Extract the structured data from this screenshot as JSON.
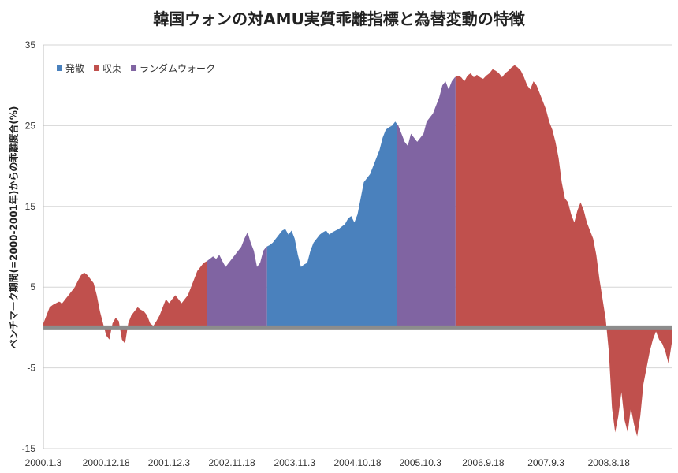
{
  "chart_data": {
    "type": "area",
    "title": "韓国ウォンの対AMU実質乖離指標と為替変動の特徴",
    "ylabel": "ベンチマーク期間(=2000-2001年)からの乖離度合(%)",
    "xlabel": "",
    "ylim": [
      -15,
      35
    ],
    "yticks": [
      -15,
      -5,
      5,
      15,
      25,
      35
    ],
    "xticks": [
      "2000.1.3",
      "2000.12.18",
      "2001.12.3",
      "2002.11.18",
      "2003.11.3",
      "2004.10.18",
      "2005.10.3",
      "2006.9.18",
      "2007.9.3",
      "2008.8.18"
    ],
    "grid": true,
    "legend_position": "top-left",
    "legend": [
      {
        "name": "発散",
        "color": "#4a81bd"
      },
      {
        "name": "収束",
        "color": "#c0504d"
      },
      {
        "name": "ランダムウォーク",
        "color": "#8064a2"
      }
    ],
    "zero_line_color": "#8c8c8c",
    "x_index_range": [
      0,
      100
    ],
    "segments": [
      {
        "category": "収束",
        "from": 0,
        "to": 26
      },
      {
        "category": "ランダムウォーク",
        "from": 26,
        "to": 35.6
      },
      {
        "category": "発散",
        "from": 35.6,
        "to": 56.3
      },
      {
        "category": "ランダムウォーク",
        "from": 56.3,
        "to": 65.6
      },
      {
        "category": "収束",
        "from": 65.6,
        "to": 100
      }
    ],
    "points": [
      [
        0.0,
        0.5
      ],
      [
        0.5,
        1.5
      ],
      [
        1.0,
        2.5
      ],
      [
        1.5,
        2.8
      ],
      [
        2.0,
        3.0
      ],
      [
        2.5,
        3.2
      ],
      [
        3.0,
        3.0
      ],
      [
        3.5,
        3.5
      ],
      [
        4.0,
        4.0
      ],
      [
        4.5,
        4.5
      ],
      [
        5.0,
        5.0
      ],
      [
        5.5,
        5.8
      ],
      [
        6.0,
        6.5
      ],
      [
        6.5,
        6.8
      ],
      [
        7.0,
        6.5
      ],
      [
        7.5,
        6.0
      ],
      [
        8.0,
        5.5
      ],
      [
        8.5,
        4.0
      ],
      [
        9.0,
        2.0
      ],
      [
        9.5,
        0.5
      ],
      [
        10.0,
        -1.0
      ],
      [
        10.5,
        -1.5
      ],
      [
        11.0,
        0.5
      ],
      [
        11.5,
        1.2
      ],
      [
        12.0,
        0.8
      ],
      [
        12.5,
        -1.5
      ],
      [
        13.0,
        -2.0
      ],
      [
        13.5,
        0.5
      ],
      [
        14.0,
        1.5
      ],
      [
        14.5,
        2.0
      ],
      [
        15.0,
        2.5
      ],
      [
        15.5,
        2.2
      ],
      [
        16.0,
        2.0
      ],
      [
        16.5,
        1.5
      ],
      [
        17.0,
        0.5
      ],
      [
        17.5,
        0.2
      ],
      [
        18.0,
        0.8
      ],
      [
        18.5,
        1.5
      ],
      [
        19.0,
        2.5
      ],
      [
        19.5,
        3.5
      ],
      [
        20.0,
        3.0
      ],
      [
        20.5,
        3.5
      ],
      [
        21.0,
        4.0
      ],
      [
        21.5,
        3.5
      ],
      [
        22.0,
        3.0
      ],
      [
        22.5,
        3.5
      ],
      [
        23.0,
        4.0
      ],
      [
        23.5,
        5.0
      ],
      [
        24.0,
        6.0
      ],
      [
        24.5,
        7.0
      ],
      [
        25.0,
        7.5
      ],
      [
        25.5,
        8.0
      ],
      [
        26.0,
        8.2
      ],
      [
        26.5,
        8.5
      ],
      [
        27.0,
        8.8
      ],
      [
        27.5,
        8.5
      ],
      [
        28.0,
        9.0
      ],
      [
        28.5,
        8.2
      ],
      [
        29.0,
        7.5
      ],
      [
        29.5,
        8.0
      ],
      [
        30.0,
        8.5
      ],
      [
        30.5,
        9.0
      ],
      [
        31.0,
        9.5
      ],
      [
        31.5,
        10.0
      ],
      [
        32.0,
        11.0
      ],
      [
        32.5,
        11.8
      ],
      [
        33.0,
        10.5
      ],
      [
        33.5,
        9.5
      ],
      [
        34.0,
        7.5
      ],
      [
        34.5,
        8.0
      ],
      [
        35.0,
        9.5
      ],
      [
        35.5,
        10.0
      ],
      [
        36.0,
        10.2
      ],
      [
        36.5,
        10.5
      ],
      [
        37.0,
        11.0
      ],
      [
        37.5,
        11.5
      ],
      [
        38.0,
        12.0
      ],
      [
        38.5,
        12.2
      ],
      [
        39.0,
        11.5
      ],
      [
        39.5,
        12.0
      ],
      [
        40.0,
        11.0
      ],
      [
        40.5,
        9.0
      ],
      [
        41.0,
        7.5
      ],
      [
        41.5,
        7.8
      ],
      [
        42.0,
        8.0
      ],
      [
        42.5,
        9.5
      ],
      [
        43.0,
        10.5
      ],
      [
        43.5,
        11.0
      ],
      [
        44.0,
        11.5
      ],
      [
        44.5,
        11.8
      ],
      [
        45.0,
        12.0
      ],
      [
        45.5,
        11.5
      ],
      [
        46.0,
        11.8
      ],
      [
        46.5,
        12.0
      ],
      [
        47.0,
        12.2
      ],
      [
        47.5,
        12.5
      ],
      [
        48.0,
        12.8
      ],
      [
        48.5,
        13.5
      ],
      [
        49.0,
        13.8
      ],
      [
        49.5,
        13.0
      ],
      [
        50.0,
        14.0
      ],
      [
        50.5,
        16.0
      ],
      [
        51.0,
        18.0
      ],
      [
        51.5,
        18.5
      ],
      [
        52.0,
        19.0
      ],
      [
        52.5,
        20.0
      ],
      [
        53.0,
        21.0
      ],
      [
        53.5,
        22.0
      ],
      [
        54.0,
        23.5
      ],
      [
        54.5,
        24.5
      ],
      [
        55.0,
        24.8
      ],
      [
        55.5,
        25.0
      ],
      [
        56.0,
        25.5
      ],
      [
        56.5,
        25.0
      ],
      [
        57.0,
        24.0
      ],
      [
        57.5,
        23.0
      ],
      [
        58.0,
        22.5
      ],
      [
        58.5,
        24.0
      ],
      [
        59.0,
        23.5
      ],
      [
        59.5,
        23.0
      ],
      [
        60.0,
        23.5
      ],
      [
        60.5,
        24.0
      ],
      [
        61.0,
        25.5
      ],
      [
        61.5,
        26.0
      ],
      [
        62.0,
        26.5
      ],
      [
        62.5,
        27.5
      ],
      [
        63.0,
        28.5
      ],
      [
        63.5,
        30.0
      ],
      [
        64.0,
        30.5
      ],
      [
        64.5,
        29.5
      ],
      [
        65.0,
        30.5
      ],
      [
        65.5,
        31.0
      ],
      [
        66.0,
        31.2
      ],
      [
        66.5,
        31.0
      ],
      [
        67.0,
        30.5
      ],
      [
        67.5,
        31.2
      ],
      [
        68.0,
        31.5
      ],
      [
        68.5,
        31.0
      ],
      [
        69.0,
        31.3
      ],
      [
        69.5,
        31.0
      ],
      [
        70.0,
        30.8
      ],
      [
        70.5,
        31.2
      ],
      [
        71.0,
        31.5
      ],
      [
        71.5,
        32.0
      ],
      [
        72.0,
        31.8
      ],
      [
        72.5,
        31.5
      ],
      [
        73.0,
        31.0
      ],
      [
        73.5,
        31.5
      ],
      [
        74.0,
        31.8
      ],
      [
        74.5,
        32.2
      ],
      [
        75.0,
        32.5
      ],
      [
        75.5,
        32.2
      ],
      [
        76.0,
        31.8
      ],
      [
        76.5,
        31.0
      ],
      [
        77.0,
        30.0
      ],
      [
        77.5,
        29.5
      ],
      [
        78.0,
        30.5
      ],
      [
        78.5,
        30.0
      ],
      [
        79.0,
        29.0
      ],
      [
        79.5,
        28.0
      ],
      [
        80.0,
        27.0
      ],
      [
        80.5,
        25.5
      ],
      [
        81.0,
        24.5
      ],
      [
        81.5,
        23.0
      ],
      [
        82.0,
        21.0
      ],
      [
        82.5,
        18.0
      ],
      [
        83.0,
        16.0
      ],
      [
        83.5,
        15.5
      ],
      [
        84.0,
        14.0
      ],
      [
        84.5,
        13.0
      ],
      [
        85.0,
        14.5
      ],
      [
        85.5,
        15.5
      ],
      [
        86.0,
        14.5
      ],
      [
        86.5,
        13.0
      ],
      [
        87.0,
        12.0
      ],
      [
        87.5,
        11.0
      ],
      [
        88.0,
        9.0
      ],
      [
        88.5,
        6.0
      ],
      [
        89.0,
        3.5
      ],
      [
        89.5,
        1.0
      ],
      [
        90.0,
        -3.0
      ],
      [
        90.5,
        -10.0
      ],
      [
        91.0,
        -13.0
      ],
      [
        91.5,
        -11.0
      ],
      [
        92.0,
        -8.0
      ],
      [
        92.5,
        -11.5
      ],
      [
        93.0,
        -13.0
      ],
      [
        93.5,
        -10.0
      ],
      [
        94.0,
        -12.0
      ],
      [
        94.5,
        -13.5
      ],
      [
        95.0,
        -11.0
      ],
      [
        95.5,
        -7.0
      ],
      [
        96.0,
        -5.0
      ],
      [
        96.5,
        -3.0
      ],
      [
        97.0,
        -1.5
      ],
      [
        97.5,
        -0.5
      ],
      [
        98.0,
        -1.5
      ],
      [
        98.5,
        -2.0
      ],
      [
        99.0,
        -3.0
      ],
      [
        99.5,
        -4.5
      ],
      [
        100.0,
        -2.0
      ]
    ]
  }
}
